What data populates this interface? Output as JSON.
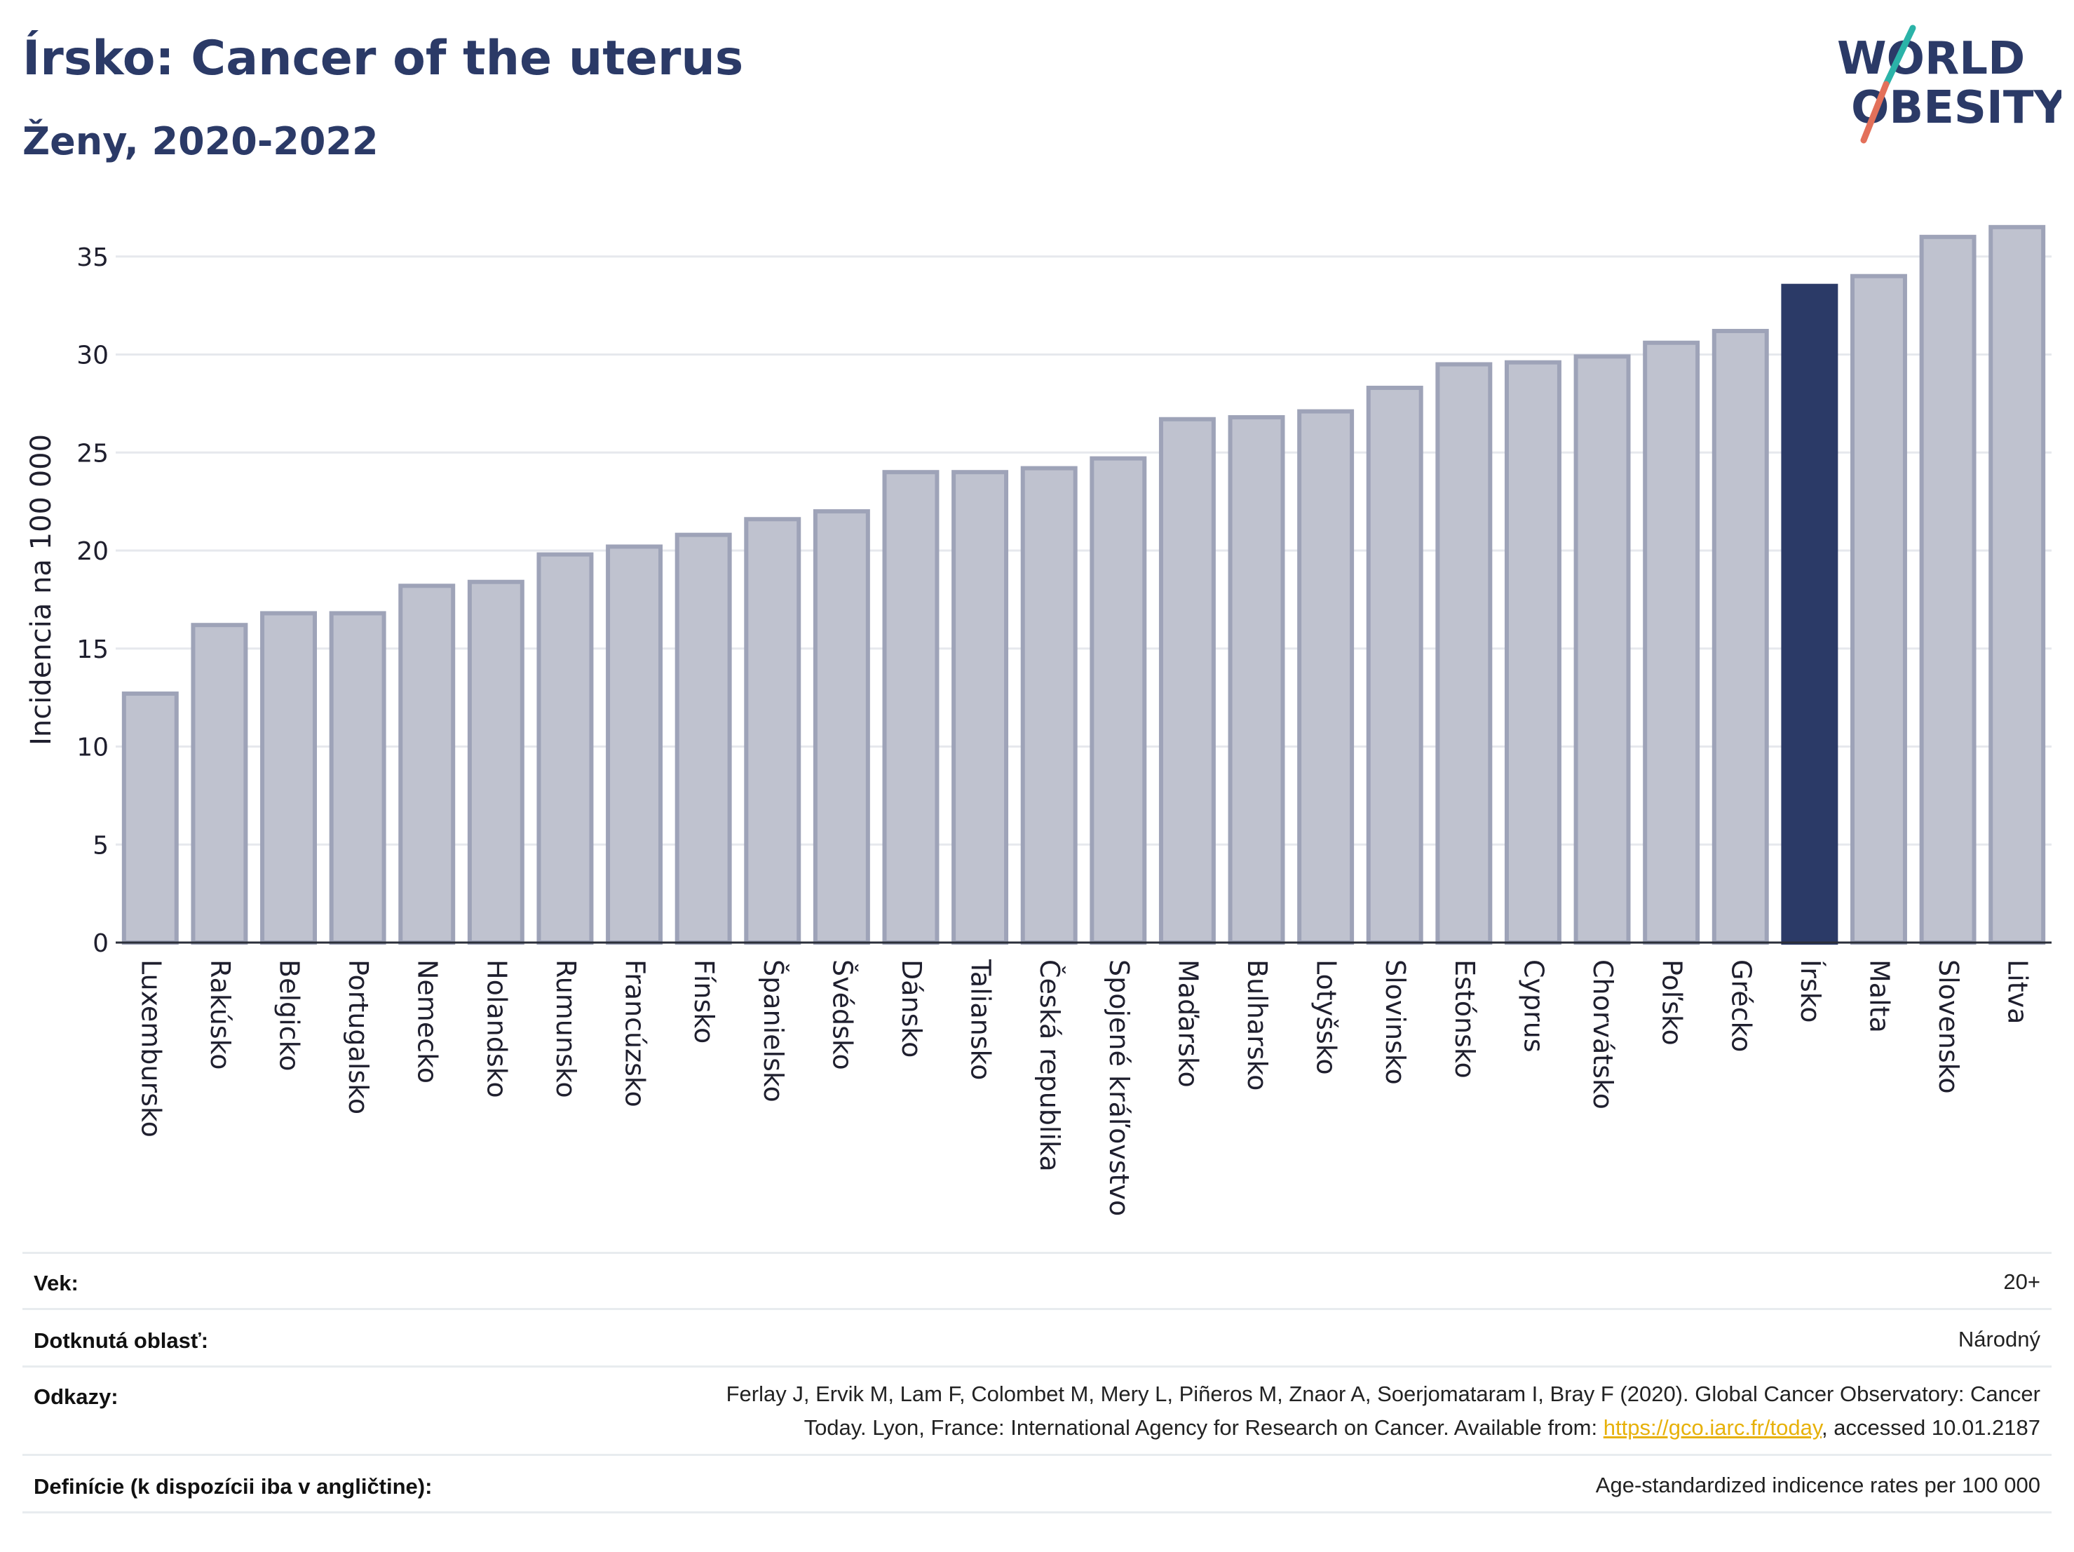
{
  "header": {
    "title": "Írsko: Cancer of the uterus",
    "subtitle": "Ženy, 2020-2022"
  },
  "logo": {
    "line1": "WORLD",
    "line2": "OBESITY",
    "colors": {
      "text": "#2b3a67",
      "slash_teal": "#2bb3a8",
      "slash_red": "#e3705a"
    }
  },
  "chart_data": {
    "type": "bar",
    "ylabel": "Incidencia na 100 000",
    "ylim": [
      0,
      37
    ],
    "yticks": [
      0,
      5,
      10,
      15,
      20,
      25,
      30,
      35
    ],
    "grid": true,
    "highlight": "Írsko",
    "colors": {
      "bar": "#bfc2cf",
      "bar_border": "#9ea3b8",
      "highlight": "#2b3a67",
      "grid": "#e6e8ed"
    },
    "categories": [
      "Luxembursko",
      "Rakúsko",
      "Belgicko",
      "Portugalsko",
      "Nemecko",
      "Holandsko",
      "Rumunsko",
      "Francúzsko",
      "Fínsko",
      "Španielsko",
      "Švédsko",
      "Dánsko",
      "Taliansko",
      "Česká republika",
      "Spojené kráľovstvo",
      "Maďarsko",
      "Bulharsko",
      "Lotyšsko",
      "Slovinsko",
      "Estónsko",
      "Cyprus",
      "Chorvátsko",
      "Poľsko",
      "Grécko",
      "Írsko",
      "Malta",
      "Slovensko",
      "Litva"
    ],
    "values": [
      12.7,
      16.2,
      16.8,
      16.8,
      18.2,
      18.4,
      19.8,
      20.2,
      20.8,
      21.6,
      22.0,
      24.0,
      24.0,
      24.2,
      24.7,
      26.7,
      26.8,
      27.1,
      28.3,
      29.5,
      29.6,
      29.9,
      30.6,
      31.2,
      33.5,
      34.0,
      36.0,
      36.5
    ]
  },
  "info": {
    "age_label": "Vek:",
    "age_value": "20+",
    "area_label": "Dotknutá oblasť:",
    "area_value": "Národný",
    "refs_label": "Odkazy:",
    "refs_line1": "Ferlay J, Ervik M, Lam F, Colombet M, Mery L, Piñeros M, Znaor A, Soerjomataram I, Bray F (2020). Global Cancer Observatory: Cancer",
    "refs_line2_pre": "Today. Lyon, France: International Agency for Research on Cancer. Available from: ",
    "refs_link": "https://gco.iarc.fr/today",
    "refs_line2_post": ", accessed 10.01.2187",
    "def_label": "Definície (k dispozícii iba v angličtine):",
    "def_value": "Age-standardized indicence rates per 100 000"
  }
}
